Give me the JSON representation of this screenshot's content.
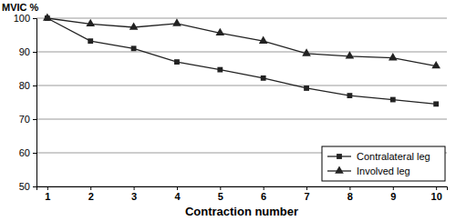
{
  "chart_data": {
    "type": "line",
    "y_label": "MVIC %",
    "x_label": "Contraction number",
    "categories": [
      "1",
      "2",
      "3",
      "4",
      "5",
      "6",
      "7",
      "8",
      "9",
      "10"
    ],
    "series": [
      {
        "name": "Contralateral leg",
        "color": "#222222",
        "marker": "square",
        "values": [
          100,
          93.2,
          91,
          87,
          84.7,
          82.2,
          79.2,
          77,
          75.8,
          74.5
        ]
      },
      {
        "name": "Involved leg",
        "color": "#222222",
        "marker": "triangle",
        "values": [
          100,
          98.3,
          97.3,
          98.4,
          95.6,
          93.2,
          89.5,
          88.7,
          88.2,
          85.8
        ]
      }
    ],
    "ylim": [
      50,
      100
    ],
    "yticks": [
      50,
      60,
      70,
      80,
      90,
      100
    ],
    "grid": true,
    "legend": "lower right"
  }
}
